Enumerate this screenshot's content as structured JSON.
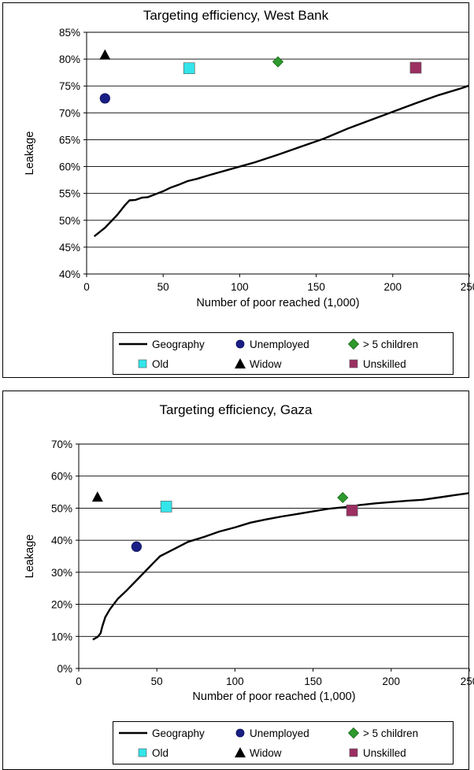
{
  "chart_data": [
    {
      "type": "line",
      "title": "Targeting efficiency, West Bank",
      "xlabel": "Number of poor reached (1,000)",
      "ylabel": "Leakage",
      "xlim": [
        0,
        250
      ],
      "ylim": [
        40,
        85
      ],
      "x_ticks": [
        "0",
        "50",
        "100",
        "150",
        "200",
        "250"
      ],
      "y_ticks": [
        "40%",
        "45%",
        "50%",
        "55%",
        "60%",
        "65%",
        "70%",
        "75%",
        "80%",
        "85%"
      ],
      "grid": "horizontal",
      "legend_position": "bottom",
      "series": [
        {
          "name": "Geography",
          "kind": "line",
          "color": "#000000",
          "points": [
            [
              5,
              47
            ],
            [
              12,
              48.6
            ],
            [
              20,
              51
            ],
            [
              25,
              52.8
            ],
            [
              28,
              53.7
            ],
            [
              32,
              53.8
            ],
            [
              36,
              54.2
            ],
            [
              40,
              54.3
            ],
            [
              50,
              55.4
            ],
            [
              55,
              56.1
            ],
            [
              60,
              56.6
            ],
            [
              66,
              57.3
            ],
            [
              72,
              57.7
            ],
            [
              80,
              58.4
            ],
            [
              95,
              59.6
            ],
            [
              110,
              60.8
            ],
            [
              125,
              62.2
            ],
            [
              140,
              63.7
            ],
            [
              155,
              65.2
            ],
            [
              170,
              67
            ],
            [
              185,
              68.6
            ],
            [
              200,
              70.2
            ],
            [
              215,
              71.8
            ],
            [
              230,
              73.3
            ],
            [
              245,
              74.6
            ],
            [
              252,
              75.3
            ]
          ]
        },
        {
          "name": "Unemployed",
          "kind": "marker",
          "marker": "circle",
          "color": "#1a1f86",
          "points": [
            [
              12,
              72.7
            ]
          ]
        },
        {
          "name": "> 5 children",
          "kind": "marker",
          "marker": "diamond",
          "color": "#2e9a2e",
          "points": [
            [
              125,
              79.5
            ]
          ]
        },
        {
          "name": "Old",
          "kind": "marker",
          "marker": "square",
          "color": "#33e5ea",
          "points": [
            [
              67,
              78.3
            ]
          ]
        },
        {
          "name": "Widow",
          "kind": "marker",
          "marker": "triangle",
          "color": "#000000",
          "points": [
            [
              12,
              80.8
            ]
          ]
        },
        {
          "name": "Unskilled",
          "kind": "marker",
          "marker": "square",
          "color": "#9b2f62",
          "points": [
            [
              215,
              78.4
            ]
          ]
        }
      ]
    },
    {
      "type": "line",
      "title": "Targeting efficiency, Gaza",
      "xlabel": "Number of poor reached (1,000)",
      "ylabel": "Leakage",
      "xlim": [
        0,
        250
      ],
      "ylim": [
        0,
        70
      ],
      "x_ticks": [
        "0",
        "50",
        "100",
        "150",
        "200",
        "250"
      ],
      "y_ticks": [
        "0%",
        "10%",
        "20%",
        "30%",
        "40%",
        "50%",
        "60%",
        "70%"
      ],
      "grid": "horizontal",
      "legend_position": "bottom",
      "series": [
        {
          "name": "Geography",
          "kind": "line",
          "color": "#000000",
          "points": [
            [
              9,
              9
            ],
            [
              12,
              9.8
            ],
            [
              14,
              11
            ],
            [
              15,
              13
            ],
            [
              17,
              16
            ],
            [
              20,
              18.5
            ],
            [
              25,
              21.7
            ],
            [
              30,
              24
            ],
            [
              36,
              27
            ],
            [
              42,
              30
            ],
            [
              48,
              33
            ],
            [
              52,
              35
            ],
            [
              60,
              37
            ],
            [
              70,
              39.5
            ],
            [
              80,
              41
            ],
            [
              90,
              42.7
            ],
            [
              100,
              44
            ],
            [
              110,
              45.5
            ],
            [
              120,
              46.5
            ],
            [
              130,
              47.4
            ],
            [
              140,
              48.2
            ],
            [
              150,
              49
            ],
            [
              160,
              49.8
            ],
            [
              170,
              50.3
            ],
            [
              180,
              51
            ],
            [
              190,
              51.5
            ],
            [
              200,
              51.9
            ],
            [
              210,
              52.3
            ],
            [
              220,
              52.6
            ],
            [
              230,
              53.3
            ],
            [
              240,
              54
            ],
            [
              250,
              54.7
            ],
            [
              254,
              55.2
            ]
          ]
        },
        {
          "name": "Unemployed",
          "kind": "marker",
          "marker": "circle",
          "color": "#1a1f86",
          "points": [
            [
              37,
              38
            ]
          ]
        },
        {
          "name": "> 5 children",
          "kind": "marker",
          "marker": "diamond",
          "color": "#2e9a2e",
          "points": [
            [
              169,
              53.3
            ]
          ]
        },
        {
          "name": "Old",
          "kind": "marker",
          "marker": "square",
          "color": "#33e5ea",
          "points": [
            [
              56,
              50.5
            ]
          ]
        },
        {
          "name": "Widow",
          "kind": "marker",
          "marker": "triangle",
          "color": "#000000",
          "points": [
            [
              12,
              53.5
            ]
          ]
        },
        {
          "name": "Unskilled",
          "kind": "marker",
          "marker": "square",
          "color": "#9b2f62",
          "points": [
            [
              175,
              49.3
            ]
          ]
        }
      ]
    }
  ]
}
